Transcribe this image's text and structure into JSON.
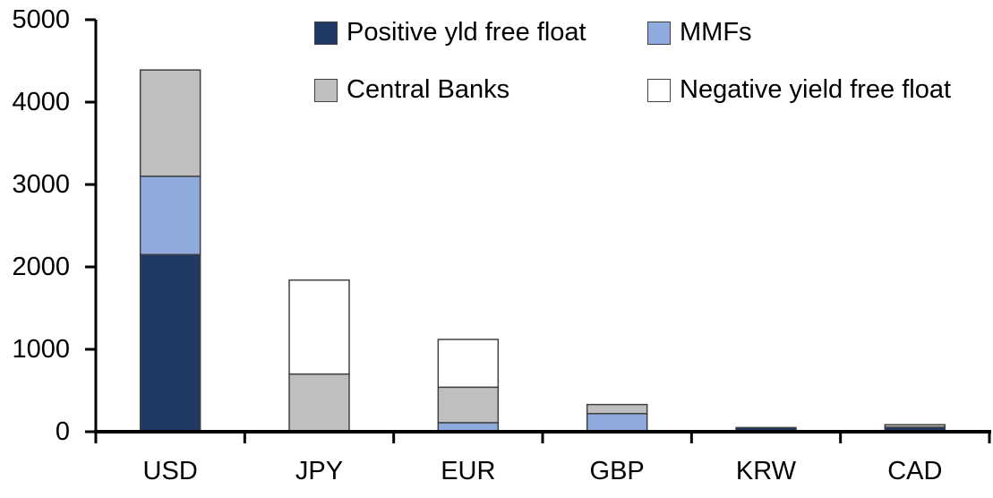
{
  "chart_data": {
    "type": "bar",
    "stacked": true,
    "title": "",
    "xlabel": "",
    "ylabel": "",
    "categories": [
      "USD",
      "JPY",
      "EUR",
      "GBP",
      "KRW",
      "CAD"
    ],
    "series": [
      {
        "name": "Positive yld free float",
        "color": "#1F3864",
        "values": [
          2150,
          0,
          0,
          0,
          50,
          55
        ]
      },
      {
        "name": "MMFs",
        "color": "#8FAADC",
        "values": [
          950,
          0,
          110,
          220,
          0,
          0
        ]
      },
      {
        "name": "Central Banks",
        "color": "#BFBFBF",
        "values": [
          1290,
          700,
          430,
          110,
          0,
          30
        ]
      },
      {
        "name": "Negative yield free float",
        "color": "#FFFFFF",
        "values": [
          0,
          1140,
          580,
          0,
          0,
          0
        ]
      }
    ],
    "ylim": [
      0,
      5000
    ],
    "ytick_step": 1000,
    "ytick_labels": [
      "0",
      "1000",
      "2000",
      "3000",
      "4000",
      "5000"
    ],
    "grid": false,
    "legend_position": "top-inside",
    "legend_layout": "two-columns",
    "legend_order": [
      0,
      1,
      2,
      3
    ]
  },
  "style": {
    "background": "#FFFFFF",
    "axis_color": "#000000",
    "segment_border_color": "#404040",
    "text_color": "#000000",
    "axis_font_size": 29,
    "category_font_size": 29
  }
}
